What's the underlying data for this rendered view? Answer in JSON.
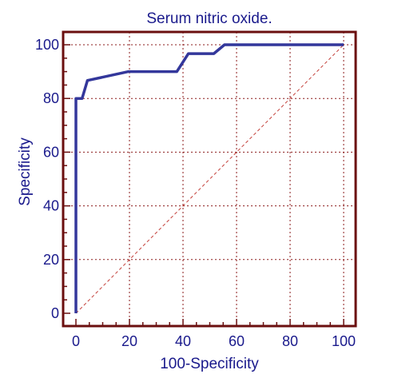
{
  "chart_data": {
    "type": "line",
    "title": "Serum nitric oxide.",
    "xlabel": "100-Specificity",
    "ylabel": "Specificity",
    "xlim": [
      0,
      100
    ],
    "ylim": [
      0,
      100
    ],
    "xticks": [
      0,
      20,
      40,
      60,
      80,
      100
    ],
    "yticks": [
      0,
      20,
      40,
      60,
      80,
      100
    ],
    "x_tick_labels": [
      "0",
      "20",
      "40",
      "60",
      "80",
      "100"
    ],
    "y_tick_labels": [
      "0",
      "20",
      "40",
      "60",
      "80",
      "100"
    ],
    "grid": true,
    "series": [
      {
        "x": [
          0,
          0,
          2.3,
          4.3,
          19.6,
          37.7,
          42,
          51.5,
          55.5,
          100
        ],
        "y": [
          0,
          80,
          80,
          86.7,
          90,
          90,
          96.7,
          96.7,
          100,
          100
        ]
      }
    ],
    "reference_line": {
      "x": [
        0,
        100
      ],
      "y": [
        0,
        100
      ]
    },
    "colors": {
      "curve": "#33379b",
      "frame": "#6b0f0f",
      "grid": "#8b1a1a",
      "diagonal": "#c4413b",
      "text": "#1a1a8c"
    }
  }
}
